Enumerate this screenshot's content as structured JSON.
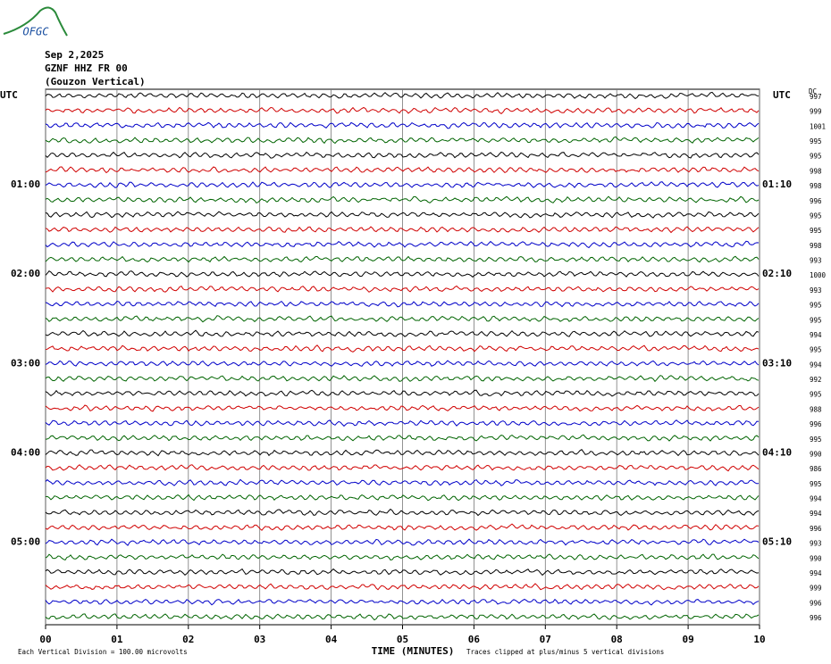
{
  "logo": "OFGC",
  "header": {
    "date": "Sep 2,2025",
    "station": "GZNF HHZ FR 00",
    "location": "(Gouzon Vertical)"
  },
  "left_axis_title": "UTC",
  "right_axis_title": "UTC",
  "dc_title": "DC",
  "trace_colors": [
    "#000000",
    "#d00000",
    "#0000c8",
    "#006400"
  ],
  "rows": [
    {
      "dc": 997
    },
    {
      "dc": 999
    },
    {
      "dc": 1001
    },
    {
      "dc": 995
    },
    {
      "dc": 995
    },
    {
      "dc": 998
    },
    {
      "left": "01:00",
      "right": "01:10",
      "dc": 998
    },
    {
      "dc": 996
    },
    {
      "dc": 995
    },
    {
      "dc": 995
    },
    {
      "dc": 998
    },
    {
      "dc": 993
    },
    {
      "left": "02:00",
      "right": "02:10",
      "dc": 1000
    },
    {
      "dc": 993
    },
    {
      "dc": 995
    },
    {
      "dc": 995
    },
    {
      "dc": 994
    },
    {
      "dc": 995
    },
    {
      "left": "03:00",
      "right": "03:10",
      "dc": 994
    },
    {
      "dc": 992
    },
    {
      "dc": 995
    },
    {
      "dc": 988
    },
    {
      "dc": 996
    },
    {
      "dc": 995
    },
    {
      "left": "04:00",
      "right": "04:10",
      "dc": 990
    },
    {
      "dc": 986
    },
    {
      "dc": 995
    },
    {
      "dc": 994
    },
    {
      "dc": 994
    },
    {
      "dc": 996
    },
    {
      "left": "05:00",
      "right": "05:10",
      "dc": 993
    },
    {
      "dc": 990
    },
    {
      "dc": 994
    },
    {
      "dc": 999
    },
    {
      "dc": 996
    },
    {
      "dc": 996
    }
  ],
  "x_ticks": [
    "00",
    "01",
    "02",
    "03",
    "04",
    "05",
    "06",
    "07",
    "08",
    "09",
    "10"
  ],
  "footer": {
    "scale": "Each Vertical Division =  100.00 microvolts",
    "x_title": "TIME (MINUTES)",
    "clip_note": "Traces clipped at plus/minus 5 vertical divisions"
  }
}
